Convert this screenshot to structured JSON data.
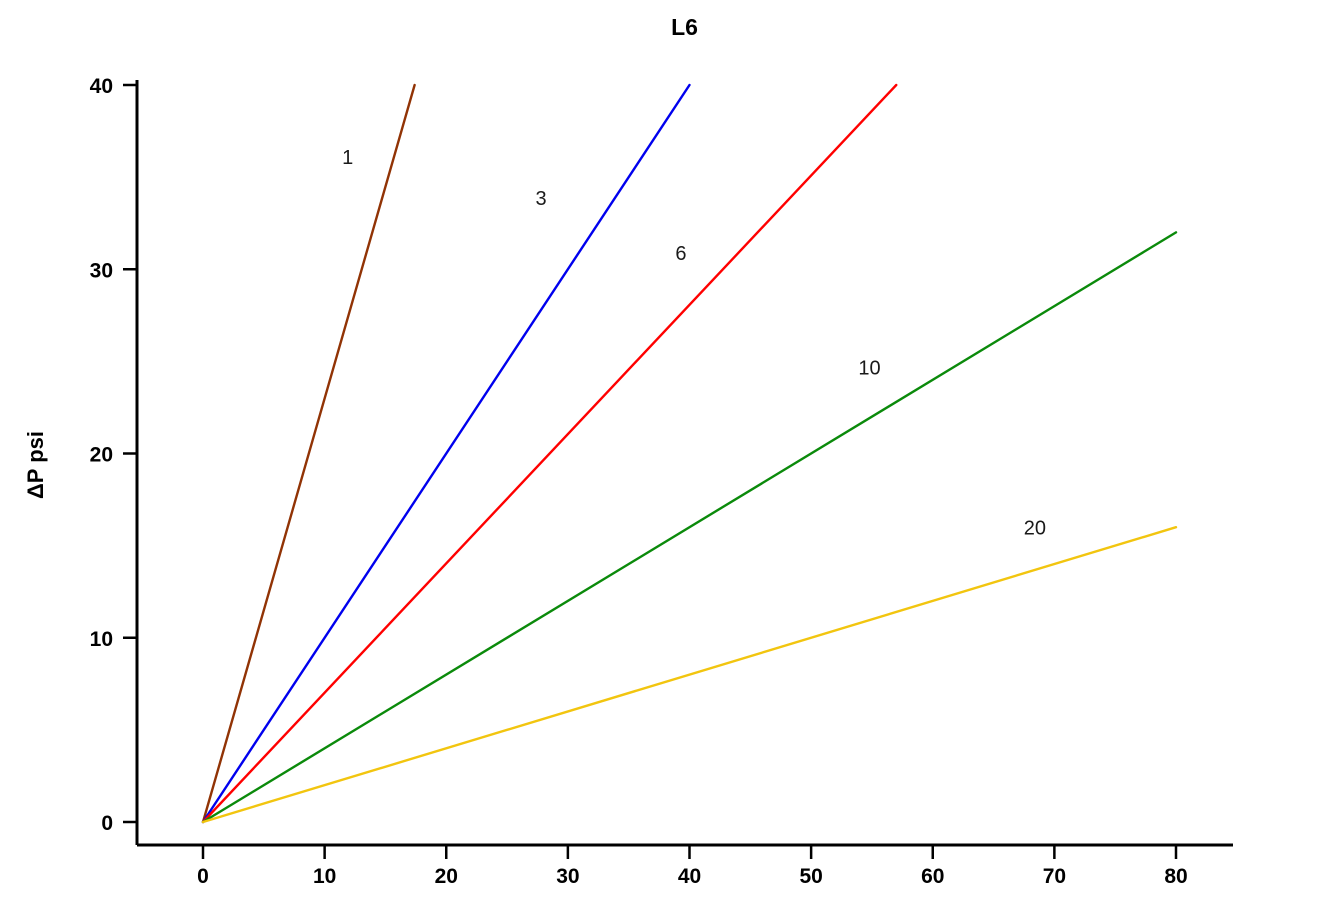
{
  "chart_data": {
    "type": "line",
    "title": "L6",
    "xlabel": "",
    "ylabel": "ΔP psi",
    "xlim": [
      0,
      80
    ],
    "ylim": [
      0,
      40
    ],
    "xticks": [
      0,
      10,
      20,
      30,
      40,
      50,
      60,
      70,
      80
    ],
    "yticks": [
      0,
      10,
      20,
      30,
      40
    ],
    "grid": false,
    "legend": "inline-labels",
    "series": [
      {
        "name": "1",
        "color": "#913305",
        "points": [
          [
            0,
            0
          ],
          [
            17.4,
            40
          ]
        ],
        "label_pos": [
          11.9,
          35.7
        ]
      },
      {
        "name": "3",
        "color": "#0000EE",
        "points": [
          [
            0,
            0
          ],
          [
            40,
            40
          ]
        ],
        "label_pos": [
          27.8,
          33.5
        ]
      },
      {
        "name": "6",
        "color": "#FF0000",
        "points": [
          [
            0,
            0
          ],
          [
            57,
            40
          ]
        ],
        "label_pos": [
          39.3,
          30.5
        ]
      },
      {
        "name": "10",
        "color": "#0B8A0B",
        "points": [
          [
            0,
            0
          ],
          [
            80,
            32
          ]
        ],
        "label_pos": [
          54.8,
          24.3
        ]
      },
      {
        "name": "20",
        "color": "#F2C50F",
        "points": [
          [
            0,
            0
          ],
          [
            80,
            16
          ]
        ],
        "label_pos": [
          68.4,
          15.6
        ]
      }
    ]
  }
}
